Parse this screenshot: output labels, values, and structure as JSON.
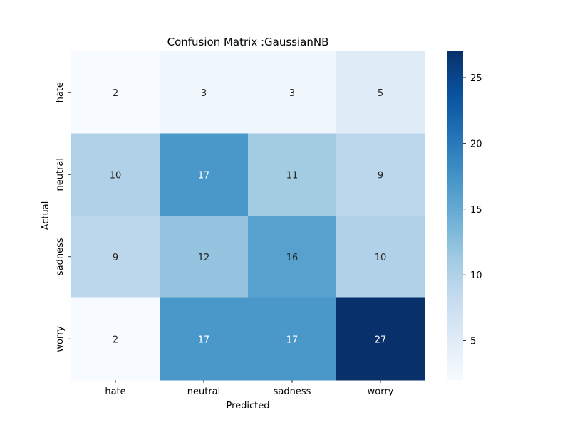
{
  "chart_data": {
    "type": "heatmap",
    "title": "Confusion Matrix :GaussianNB",
    "xlabel": "Predicted",
    "ylabel": "Actual",
    "x_categories": [
      "hate",
      "neutral",
      "sadness",
      "worry"
    ],
    "y_categories": [
      "hate",
      "neutral",
      "sadness",
      "worry"
    ],
    "values": [
      [
        2,
        3,
        3,
        5
      ],
      [
        10,
        17,
        11,
        9
      ],
      [
        9,
        12,
        16,
        10
      ],
      [
        2,
        17,
        17,
        27
      ]
    ],
    "colormap": "Blues",
    "colorbar": {
      "min": 2,
      "max": 27,
      "ticks": [
        5,
        10,
        15,
        20,
        25
      ],
      "tick_labels": [
        "5",
        "10",
        "15",
        "20",
        "25"
      ]
    },
    "annotations": true
  }
}
